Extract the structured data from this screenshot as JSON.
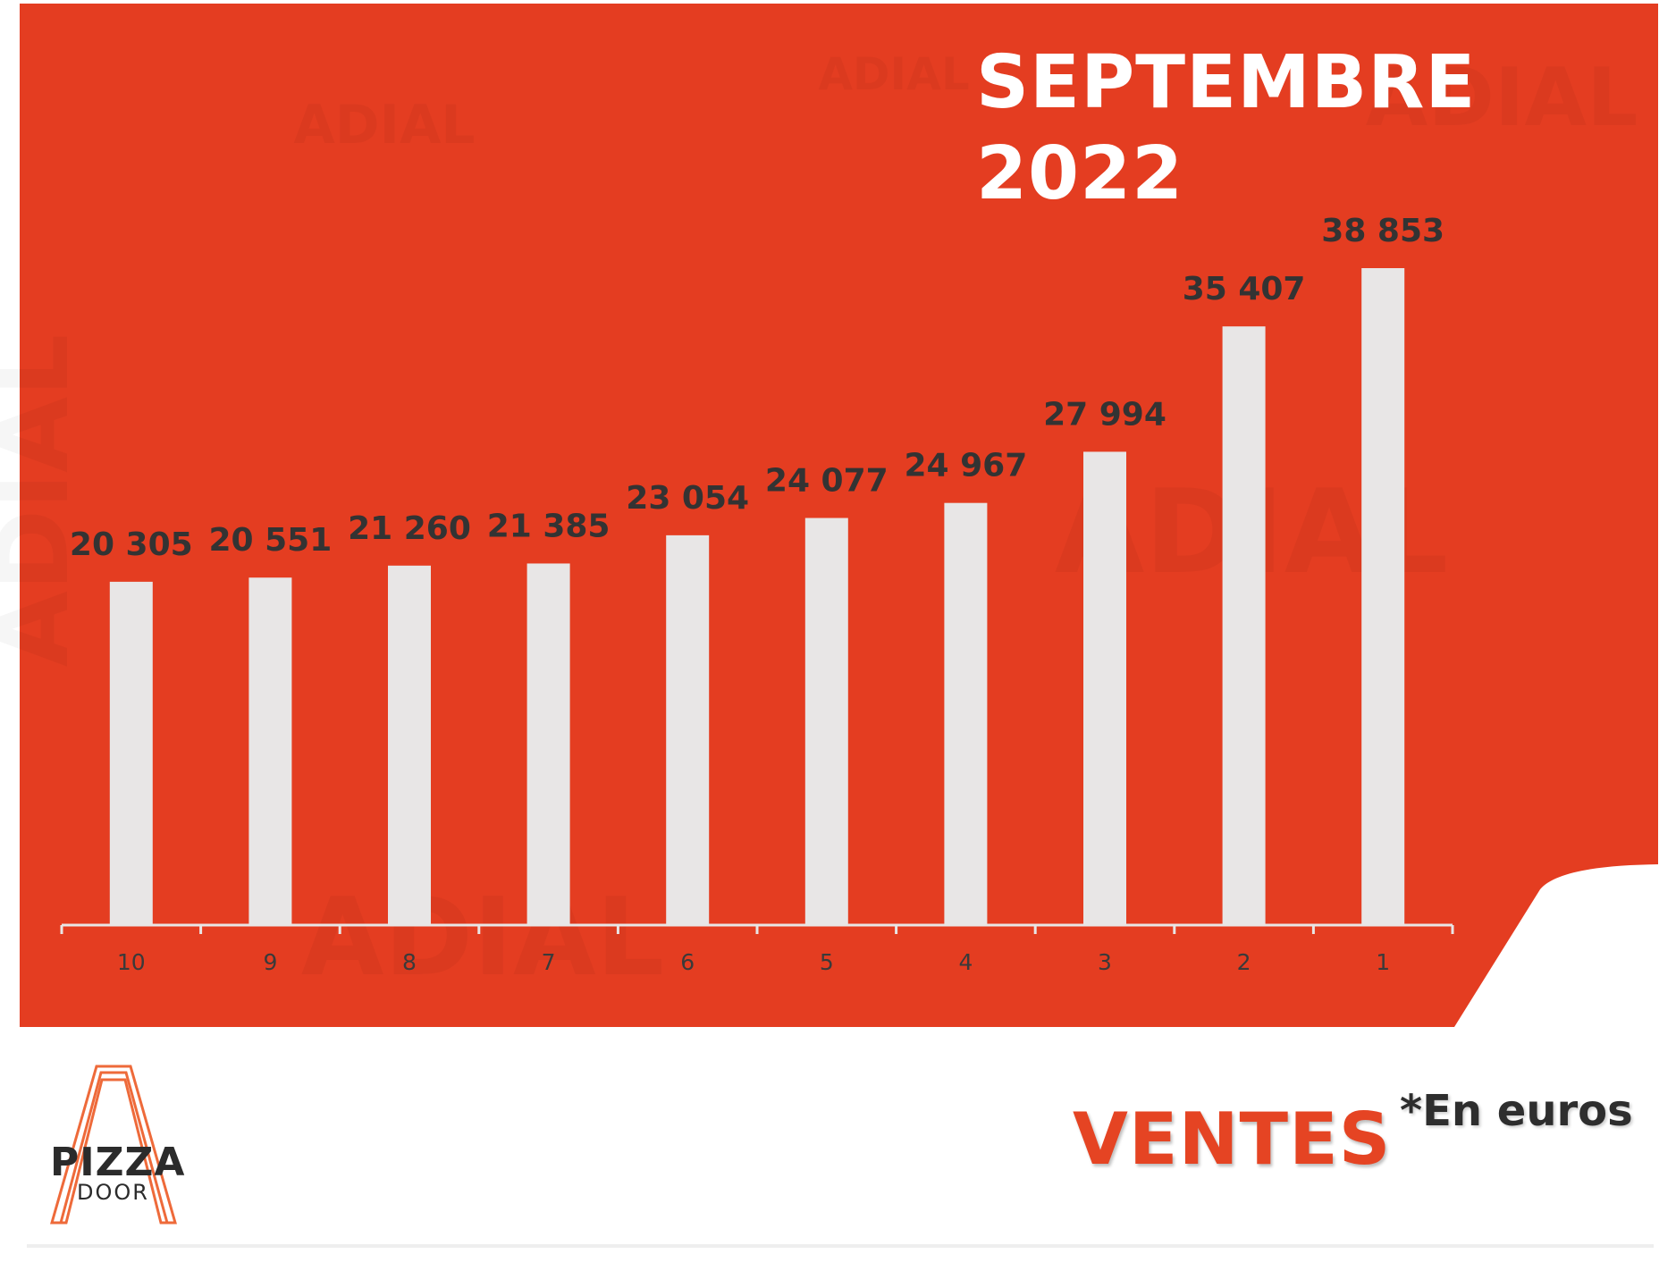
{
  "chart_data": {
    "type": "bar",
    "title": "SEPTEMBRE 2022",
    "categories": [
      "10",
      "9",
      "8",
      "7",
      "6",
      "5",
      "4",
      "3",
      "2",
      "1"
    ],
    "values": [
      20305,
      20551,
      21260,
      21385,
      23054,
      24077,
      24967,
      27994,
      35407,
      38853
    ],
    "value_labels": [
      "20 305",
      "20 551",
      "21 260",
      "21 385",
      "23 054",
      "24 077",
      "24 967",
      "27 994",
      "35 407",
      "38 853"
    ],
    "color": "#e8e6e6"
  },
  "footer": {
    "heading": "VENTES",
    "unit_note": "*En euros"
  },
  "logo": {
    "name": "PIZZA",
    "sub": "DOOR"
  },
  "watermark": "ADIAL"
}
